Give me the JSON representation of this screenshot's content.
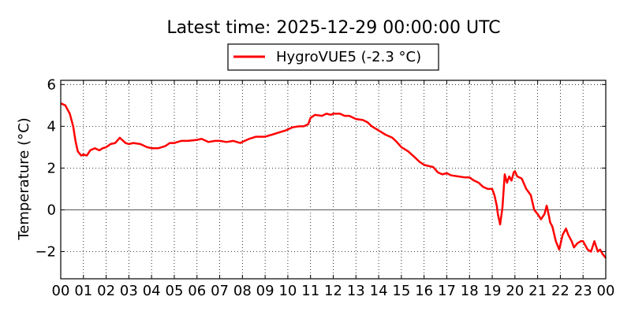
{
  "chart_data": {
    "type": "line",
    "title": "Latest time: 2025-12-29 00:00:00 UTC",
    "xlabel": "",
    "ylabel": "Temperature (°C)",
    "x_tick_labels": [
      "00",
      "01",
      "02",
      "03",
      "04",
      "05",
      "06",
      "07",
      "08",
      "09",
      "10",
      "11",
      "12",
      "13",
      "14",
      "15",
      "16",
      "17",
      "18",
      "19",
      "20",
      "21",
      "22",
      "23",
      "00"
    ],
    "xlim": [
      0,
      24
    ],
    "ylim": [
      -3.3,
      6.2
    ],
    "y_ticks": [
      -2,
      0,
      2,
      4,
      6
    ],
    "y_tick_labels": [
      "−2",
      "0",
      "2",
      "4",
      "6"
    ],
    "grid": true,
    "legend_position": "top-center",
    "reference_line_y": 0,
    "series": [
      {
        "name": "HygroVUE5 (-2.3 °C)",
        "color": "#ff0000",
        "x": [
          0.0,
          0.2,
          0.4,
          0.55,
          0.65,
          0.75,
          0.9,
          1.0,
          1.15,
          1.3,
          1.5,
          1.7,
          1.85,
          2.0,
          2.2,
          2.4,
          2.6,
          2.7,
          2.85,
          3.0,
          3.2,
          3.5,
          3.8,
          4.0,
          4.3,
          4.6,
          4.8,
          5.0,
          5.3,
          5.6,
          6.0,
          6.2,
          6.5,
          6.8,
          7.0,
          7.3,
          7.6,
          7.9,
          8.0,
          8.3,
          8.6,
          9.0,
          9.3,
          9.6,
          9.9,
          10.2,
          10.5,
          10.7,
          10.9,
          11.0,
          11.2,
          11.5,
          11.7,
          11.9,
          12.0,
          12.3,
          12.5,
          12.7,
          13.0,
          13.3,
          13.5,
          13.7,
          14.0,
          14.3,
          14.6,
          14.8,
          15.0,
          15.3,
          15.6,
          15.8,
          16.0,
          16.2,
          16.4,
          16.6,
          16.8,
          17.0,
          17.2,
          17.5,
          17.8,
          18.0,
          18.2,
          18.4,
          18.6,
          18.8,
          19.0,
          19.1,
          19.2,
          19.25,
          19.35,
          19.45,
          19.55,
          19.65,
          19.75,
          19.85,
          19.95,
          20.0,
          20.1,
          20.3,
          20.5,
          20.7,
          20.85,
          21.0,
          21.15,
          21.3,
          21.4,
          21.5,
          21.55,
          21.65,
          21.8,
          21.95,
          22.1,
          22.25,
          22.35,
          22.5,
          22.6,
          22.75,
          22.9,
          23.0,
          23.2,
          23.35,
          23.5,
          23.65,
          23.75,
          23.85,
          24.0
        ],
        "values": [
          5.1,
          5.0,
          4.6,
          4.0,
          3.3,
          2.8,
          2.6,
          2.65,
          2.6,
          2.85,
          2.95,
          2.85,
          2.95,
          3.0,
          3.15,
          3.2,
          3.45,
          3.35,
          3.2,
          3.15,
          3.2,
          3.15,
          3.0,
          2.95,
          2.95,
          3.05,
          3.2,
          3.2,
          3.3,
          3.3,
          3.35,
          3.4,
          3.25,
          3.3,
          3.3,
          3.25,
          3.3,
          3.2,
          3.25,
          3.4,
          3.5,
          3.5,
          3.6,
          3.7,
          3.8,
          3.95,
          4.0,
          4.0,
          4.1,
          4.4,
          4.55,
          4.5,
          4.6,
          4.55,
          4.6,
          4.6,
          4.5,
          4.5,
          4.35,
          4.3,
          4.2,
          4.0,
          3.8,
          3.6,
          3.45,
          3.25,
          3.0,
          2.8,
          2.5,
          2.3,
          2.15,
          2.1,
          2.05,
          1.8,
          1.7,
          1.75,
          1.65,
          1.6,
          1.55,
          1.55,
          1.4,
          1.3,
          1.1,
          1.0,
          1.0,
          0.7,
          0.2,
          -0.2,
          -0.7,
          0.1,
          1.7,
          1.3,
          1.6,
          1.4,
          1.8,
          1.85,
          1.6,
          1.5,
          1.0,
          0.7,
          0.0,
          -0.2,
          -0.45,
          -0.2,
          0.2,
          -0.3,
          -0.6,
          -0.8,
          -1.5,
          -1.9,
          -1.2,
          -0.9,
          -1.2,
          -1.5,
          -1.8,
          -1.6,
          -1.5,
          -1.5,
          -1.9,
          -2.0,
          -1.5,
          -2.0,
          -1.9,
          -2.1,
          -2.3
        ]
      }
    ]
  }
}
